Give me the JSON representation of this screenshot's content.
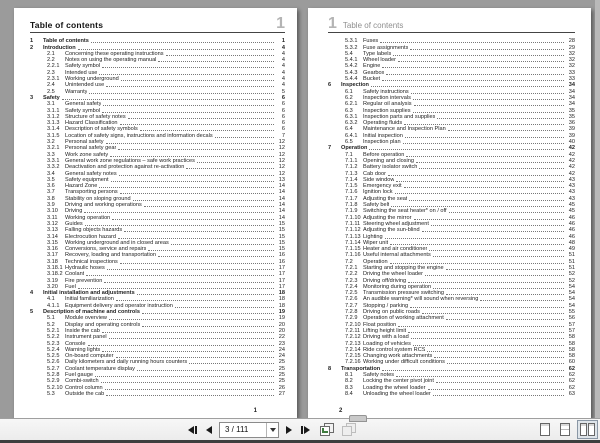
{
  "colors": {
    "canvas_background": "#9b9b9b",
    "page_background": "#ffffff",
    "toolbar_background": "#f1f1f1",
    "selected_layout_highlight": "#dfe5ea",
    "chapter_number_gray": "#b4b4b4"
  },
  "toolbar": {
    "page_field_value": "3 / 111",
    "icons": [
      "first-page-icon",
      "previous-page-icon",
      "next-page-icon",
      "last-page-icon",
      "previous-view-icon",
      "next-view-icon",
      "single-page-layout-icon",
      "continuous-layout-icon",
      "two-page-layout-icon"
    ]
  },
  "left_page": {
    "header_title": "Table of contents",
    "header_chapter": "1",
    "footer_page": "1",
    "entries": [
      {
        "num": "1",
        "title": "Table of contents",
        "page": "1"
      },
      {
        "num": "2",
        "title": "Introduction",
        "page": "4"
      },
      {
        "num": "2.1",
        "title": "Concerning these operating instructions",
        "page": "4"
      },
      {
        "num": "2.2",
        "title": "Notes on using the operating manual",
        "page": "4"
      },
      {
        "num": "2.2.1",
        "title": "Safety symbol",
        "page": "4"
      },
      {
        "num": "2.3",
        "title": "Intended use",
        "page": "4"
      },
      {
        "num": "2.3.1",
        "title": "Working underground",
        "page": "4"
      },
      {
        "num": "2.4",
        "title": "Unintended use",
        "page": "4"
      },
      {
        "num": "2.5",
        "title": "Warranty",
        "page": "5"
      },
      {
        "num": "3",
        "title": "Safety",
        "page": "6"
      },
      {
        "num": "3.1",
        "title": "General safety",
        "page": "6"
      },
      {
        "num": "3.1.1",
        "title": "Safety symbol",
        "page": "6"
      },
      {
        "num": "3.1.2",
        "title": "Structure of safety notes",
        "page": "6"
      },
      {
        "num": "3.1.3",
        "title": "Hazard Classification",
        "page": "6"
      },
      {
        "num": "3.1.4",
        "title": "Description of safety symbols",
        "page": "6"
      },
      {
        "num": "3.1.5",
        "title": "Location of safety signs, instructions and information decals",
        "page": "7"
      },
      {
        "num": "3.2",
        "title": "Personal safety",
        "page": "12"
      },
      {
        "num": "3.2.1",
        "title": "Personal safety gear",
        "page": "12"
      },
      {
        "num": "3.3",
        "title": "Work zone safety",
        "page": "12"
      },
      {
        "num": "3.3.1",
        "title": "General work zone regulations – safe work practices",
        "page": "12"
      },
      {
        "num": "3.3.2",
        "title": "Deactivation and protection against re-activation",
        "page": "12"
      },
      {
        "num": "3.4",
        "title": "General safety notes",
        "page": "12"
      },
      {
        "num": "3.5",
        "title": "Safety equipment",
        "page": "13"
      },
      {
        "num": "3.6",
        "title": "Hazard Zone",
        "page": "14"
      },
      {
        "num": "3.7",
        "title": "Transporting persons",
        "page": "14"
      },
      {
        "num": "3.8",
        "title": "Stability on sloping ground",
        "page": "14"
      },
      {
        "num": "3.9",
        "title": "Driving and working operations",
        "page": "14"
      },
      {
        "num": "3.10",
        "title": "Driving",
        "page": "14"
      },
      {
        "num": "3.11",
        "title": "Working operation",
        "page": "14"
      },
      {
        "num": "3.12",
        "title": "Guides",
        "page": "15"
      },
      {
        "num": "3.13",
        "title": "Falling objects hazards",
        "page": "15"
      },
      {
        "num": "3.14",
        "title": "Electrocution hazard",
        "page": "15"
      },
      {
        "num": "3.15",
        "title": "Working underground and in closed areas",
        "page": "15"
      },
      {
        "num": "3.16",
        "title": "Conversions, service and repairs",
        "page": "15"
      },
      {
        "num": "3.17",
        "title": "Recovery, loading and transportation",
        "page": "16"
      },
      {
        "num": "3.18",
        "title": "Technical inspections",
        "page": "16"
      },
      {
        "num": "3.18.1",
        "title": "Hydraulic hoses",
        "page": "17"
      },
      {
        "num": "3.18.2",
        "title": "Coolant",
        "page": "17"
      },
      {
        "num": "3.19",
        "title": "Fire prevention",
        "page": "17"
      },
      {
        "num": "3.20",
        "title": "Fuel",
        "page": "17"
      },
      {
        "num": "4",
        "title": "Initial installation and adjustments",
        "page": "18"
      },
      {
        "num": "4.1",
        "title": "Initial familiarization",
        "page": "18"
      },
      {
        "num": "4.1.1",
        "title": "Equipment delivery and operator instruction",
        "page": "18"
      },
      {
        "num": "5",
        "title": "Description of machine and controls",
        "page": "19"
      },
      {
        "num": "5.1",
        "title": "Module overview",
        "page": "19"
      },
      {
        "num": "5.2",
        "title": "Display and operating controls",
        "page": "20"
      },
      {
        "num": "5.2.1",
        "title": "Inside the cab",
        "page": "20"
      },
      {
        "num": "5.2.2",
        "title": "Instrument panel",
        "page": "22"
      },
      {
        "num": "5.2.3",
        "title": "Console",
        "page": "23"
      },
      {
        "num": "5.2.4",
        "title": "Warning lights",
        "page": "24"
      },
      {
        "num": "5.2.5",
        "title": "On-board computer",
        "page": "24"
      },
      {
        "num": "5.2.6",
        "title": "Daily kilometers and daily running hours counters",
        "page": "25"
      },
      {
        "num": "5.2.7",
        "title": "Coolant temperature display",
        "page": "25"
      },
      {
        "num": "5.2.8",
        "title": "Fuel gauge",
        "page": "25"
      },
      {
        "num": "5.2.9",
        "title": "Combi-switch",
        "page": "25"
      },
      {
        "num": "5.2.10",
        "title": "Control column",
        "page": "26"
      },
      {
        "num": "5.3",
        "title": "Outside the cab",
        "page": "27"
      }
    ]
  },
  "right_page": {
    "header_chapter": "1",
    "header_title": "Table of contents",
    "footer_page": "2",
    "entries": [
      {
        "num": "5.3.1",
        "title": "Fuses",
        "page": "28"
      },
      {
        "num": "5.3.2",
        "title": "Fuse assignments",
        "page": "29"
      },
      {
        "num": "5.4",
        "title": "Type labels",
        "page": "32"
      },
      {
        "num": "5.4.1",
        "title": "Wheel loader",
        "page": "32"
      },
      {
        "num": "5.4.2",
        "title": "Engine",
        "page": "32"
      },
      {
        "num": "5.4.3",
        "title": "Gearbox",
        "page": "33"
      },
      {
        "num": "5.4.4",
        "title": "Bucket",
        "page": "33"
      },
      {
        "num": "6",
        "title": "Inspection",
        "page": "34"
      },
      {
        "num": "6.1",
        "title": "Safety instructions",
        "page": "34"
      },
      {
        "num": "6.2",
        "title": "Inspection intervals",
        "page": "34"
      },
      {
        "num": "6.2.1",
        "title": "Regular oil analysis",
        "page": "34"
      },
      {
        "num": "6.3",
        "title": "Inspection supplies",
        "page": "35"
      },
      {
        "num": "6.3.1",
        "title": "Inspection parts and supplies",
        "page": "35"
      },
      {
        "num": "6.3.2",
        "title": "Operating fluids",
        "page": "36"
      },
      {
        "num": "6.4",
        "title": "Maintenance and Inspection Plan",
        "page": "39"
      },
      {
        "num": "6.4.1",
        "title": "Initial inspection",
        "page": "39"
      },
      {
        "num": "6.5",
        "title": "Inspection plan",
        "page": "40"
      },
      {
        "num": "7",
        "title": "Operation",
        "page": "42"
      },
      {
        "num": "7.1",
        "title": "Before operation",
        "page": "42"
      },
      {
        "num": "7.1.1",
        "title": "Opening and closing",
        "page": "42"
      },
      {
        "num": "7.1.2",
        "title": "Battery isolator switch",
        "page": "42"
      },
      {
        "num": "7.1.3",
        "title": "Cab door",
        "page": "42"
      },
      {
        "num": "7.1.4",
        "title": "Side window",
        "page": "43"
      },
      {
        "num": "7.1.5",
        "title": "Emergency exit",
        "page": "43"
      },
      {
        "num": "7.1.6",
        "title": "Ignition lock",
        "page": "43"
      },
      {
        "num": "7.1.7",
        "title": "Adjusting the seat",
        "page": "43"
      },
      {
        "num": "7.1.8",
        "title": "Safety belt",
        "page": "45"
      },
      {
        "num": "7.1.9",
        "title": "Switching the seat heater* on / off",
        "page": "45"
      },
      {
        "num": "7.1.10",
        "title": "Adjusting the mirror",
        "page": "46"
      },
      {
        "num": "7.1.11",
        "title": "Steering wheel adjustment",
        "page": "46"
      },
      {
        "num": "7.1.12",
        "title": "Adjusting the sun-blind",
        "page": "46"
      },
      {
        "num": "7.1.13",
        "title": "Lighting",
        "page": "46"
      },
      {
        "num": "7.1.14",
        "title": "Wiper unit",
        "page": "48"
      },
      {
        "num": "7.1.15",
        "title": "Heater and air conditioner",
        "page": "49"
      },
      {
        "num": "7.1.16",
        "title": "Useful internal attachments",
        "page": "51"
      },
      {
        "num": "7.2",
        "title": "Operation",
        "page": "51"
      },
      {
        "num": "7.2.1",
        "title": "Starting and stopping the engine",
        "page": "51"
      },
      {
        "num": "7.2.2",
        "title": "Driving the wheel loader",
        "page": "52"
      },
      {
        "num": "7.2.3",
        "title": "Driving off/driving",
        "page": "52"
      },
      {
        "num": "7.2.4",
        "title": "Monitoring during operation",
        "page": "54"
      },
      {
        "num": "7.2.5",
        "title": "Transmission pressure switching",
        "page": "54"
      },
      {
        "num": "7.2.6",
        "title": "An audible warning* will sound when reversing",
        "page": "54"
      },
      {
        "num": "7.2.7",
        "title": "Stopping / parking",
        "page": "54"
      },
      {
        "num": "7.2.8",
        "title": "Driving on public roads",
        "page": "55"
      },
      {
        "num": "7.2.9",
        "title": "Operation of working attachment",
        "page": "56"
      },
      {
        "num": "7.2.10",
        "title": "Float position",
        "page": "57"
      },
      {
        "num": "7.2.11",
        "title": "Lifting height limit",
        "page": "57"
      },
      {
        "num": "7.2.12",
        "title": "Driving with a load",
        "page": "58"
      },
      {
        "num": "7.2.13",
        "title": "Loading of vehicles",
        "page": "58"
      },
      {
        "num": "7.2.14",
        "title": "Ride control system RCS",
        "page": "58"
      },
      {
        "num": "7.2.15",
        "title": "Changing work attachments",
        "page": "58"
      },
      {
        "num": "7.2.16",
        "title": "Working under difficult conditions",
        "page": "60"
      },
      {
        "num": "8",
        "title": "Transportation",
        "page": "62"
      },
      {
        "num": "8.1",
        "title": "Safety notes",
        "page": "62"
      },
      {
        "num": "8.2",
        "title": "Locking the center pivot joint",
        "page": "62"
      },
      {
        "num": "8.3",
        "title": "Loading the wheel loader",
        "page": "62"
      },
      {
        "num": "8.4",
        "title": "Unloading the wheel loader",
        "page": "63"
      }
    ]
  }
}
